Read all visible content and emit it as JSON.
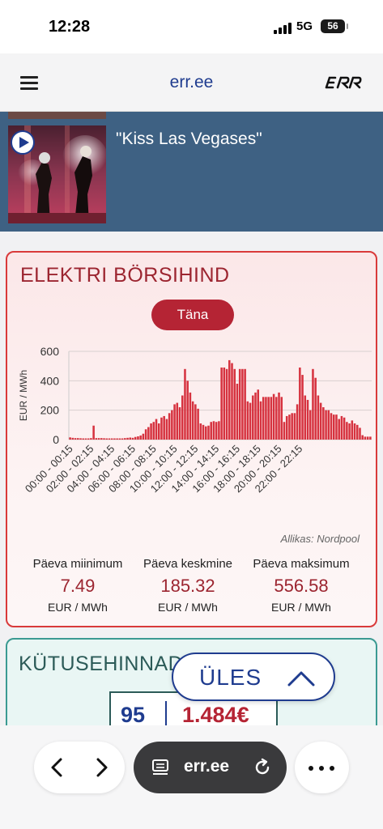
{
  "status_bar": {
    "time": "12:28",
    "network": "5G",
    "battery": "56"
  },
  "header": {
    "site_title": "err.ee",
    "logo": "ERR",
    "menu_icon": "hamburger-menu-icon"
  },
  "teaser": {
    "title": "\"Kiss Las Vegases\"",
    "play_icon": "play-icon"
  },
  "electricity": {
    "title": "ELEKTRI BÖRSIHIND",
    "tab_label": "Täna",
    "source": "Allikas: Nordpool",
    "stats": [
      {
        "label": "Päeva miinimum",
        "value": "7.49",
        "unit": "EUR / MWh"
      },
      {
        "label": "Päeva keskmine",
        "value": "185.32",
        "unit": "EUR / MWh"
      },
      {
        "label": "Päeva maksimum",
        "value": "556.58",
        "unit": "EUR / MWh"
      }
    ],
    "colors": {
      "bar": "#d6323f",
      "accent": "#b52434",
      "border": "#d93a3a"
    }
  },
  "chart_data": {
    "type": "bar",
    "ylabel": "EUR / MWh",
    "ylim": [
      0,
      600
    ],
    "yticks": [
      0,
      200,
      400,
      600
    ],
    "xtick_labels": [
      "00:00 - 00:15",
      "02:00 - 02:15",
      "04:00 - 04:15",
      "06:00 - 06:15",
      "08:00 - 08:15",
      "10:00 - 10:15",
      "12:00 - 12:15",
      "14:00 - 14:15",
      "16:00 - 16:15",
      "18:00 - 18:15",
      "20:00 - 20:15",
      "22:00 - 22:15"
    ],
    "interval": "15 min",
    "values": [
      15,
      12,
      10,
      10,
      9,
      8,
      8,
      8,
      10,
      95,
      10,
      10,
      10,
      9,
      8,
      8,
      8,
      8,
      8,
      8,
      8,
      10,
      12,
      14,
      12,
      18,
      22,
      28,
      40,
      70,
      85,
      110,
      120,
      140,
      110,
      150,
      160,
      140,
      180,
      200,
      240,
      250,
      220,
      300,
      480,
      400,
      320,
      260,
      240,
      210,
      110,
      100,
      90,
      95,
      120,
      125,
      120,
      125,
      490,
      490,
      480,
      540,
      520,
      480,
      380,
      480,
      480,
      480,
      260,
      250,
      300,
      320,
      340,
      260,
      290,
      290,
      290,
      290,
      310,
      290,
      320,
      290,
      120,
      160,
      170,
      180,
      180,
      240,
      490,
      440,
      300,
      270,
      200,
      480,
      420,
      300,
      250,
      220,
      200,
      200,
      180,
      170,
      170,
      140,
      160,
      150,
      120,
      110,
      130,
      110,
      100,
      80,
      30,
      20,
      20,
      20
    ]
  },
  "fuel": {
    "title": "KÜTUSEHINNAD",
    "grade": "95",
    "price": "1.484€"
  },
  "scroll_top_button": {
    "label": "ÜLES",
    "icon": "chevron-up-icon"
  },
  "browser": {
    "url": "err.ee",
    "back_icon": "chevron-left-icon",
    "forward_icon": "chevron-right-icon",
    "reader_icon": "reader-icon",
    "reload_icon": "reload-icon",
    "more_icon": "more-icon"
  }
}
